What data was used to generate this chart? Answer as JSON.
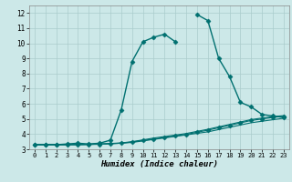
{
  "xlabel": "Humidex (Indice chaleur)",
  "bg_color": "#cce8e8",
  "grid_color": "#aacccc",
  "line_color": "#007070",
  "xlim": [
    -0.5,
    23.5
  ],
  "ylim": [
    3.0,
    12.5
  ],
  "xticks": [
    0,
    1,
    2,
    3,
    4,
    5,
    6,
    7,
    8,
    9,
    10,
    11,
    12,
    13,
    14,
    15,
    16,
    17,
    18,
    19,
    20,
    21,
    22,
    23
  ],
  "yticks": [
    3,
    4,
    5,
    6,
    7,
    8,
    9,
    10,
    11,
    12
  ],
  "series": [
    {
      "x": [
        0,
        1,
        2,
        3,
        4,
        5,
        6,
        7,
        8,
        9,
        10,
        11,
        12,
        13,
        14,
        15,
        16,
        17,
        18,
        19,
        20,
        21,
        22,
        23
      ],
      "y": [
        3.3,
        3.3,
        3.3,
        3.35,
        3.4,
        3.35,
        3.4,
        3.6,
        5.6,
        8.8,
        10.1,
        10.4,
        10.6,
        10.1,
        null,
        11.9,
        11.5,
        9.0,
        7.8,
        6.1,
        5.8,
        5.3,
        5.2,
        5.1
      ],
      "marker": "D",
      "ms": 2.5,
      "lw": 1.0
    },
    {
      "x": [
        0,
        1,
        2,
        3,
        4,
        5,
        6,
        7,
        8,
        9,
        10,
        11,
        12,
        13,
        14,
        15,
        16,
        17,
        18,
        19,
        20,
        21,
        22,
        23
      ],
      "y": [
        3.3,
        3.3,
        3.3,
        3.3,
        3.32,
        3.33,
        3.35,
        3.37,
        3.4,
        3.45,
        3.55,
        3.65,
        3.75,
        3.85,
        3.95,
        4.05,
        4.15,
        4.3,
        4.45,
        4.6,
        4.75,
        4.85,
        4.95,
        5.05
      ],
      "marker": null,
      "ms": 0,
      "lw": 0.8
    },
    {
      "x": [
        0,
        1,
        2,
        3,
        4,
        5,
        6,
        7,
        8,
        9,
        10,
        11,
        12,
        13,
        14,
        15,
        16,
        17,
        18,
        19,
        20,
        21,
        22,
        23
      ],
      "y": [
        3.3,
        3.3,
        3.3,
        3.3,
        3.3,
        3.32,
        3.35,
        3.38,
        3.42,
        3.5,
        3.62,
        3.74,
        3.84,
        3.94,
        4.04,
        4.18,
        4.32,
        4.48,
        4.64,
        4.8,
        4.96,
        5.06,
        5.16,
        5.22
      ],
      "marker": null,
      "ms": 0,
      "lw": 0.8
    },
    {
      "x": [
        0,
        1,
        2,
        3,
        4,
        5,
        6,
        7,
        8,
        9,
        10,
        11,
        12,
        13,
        14,
        15,
        16,
        17,
        18,
        19,
        20,
        21,
        22,
        23
      ],
      "y": [
        3.3,
        3.3,
        3.3,
        3.3,
        3.3,
        3.31,
        3.33,
        3.36,
        3.4,
        3.48,
        3.58,
        3.68,
        3.78,
        3.88,
        3.98,
        4.12,
        4.26,
        4.42,
        4.58,
        4.74,
        4.9,
        5.0,
        5.1,
        5.18
      ],
      "marker": "D",
      "ms": 2.5,
      "lw": 0.8
    }
  ]
}
